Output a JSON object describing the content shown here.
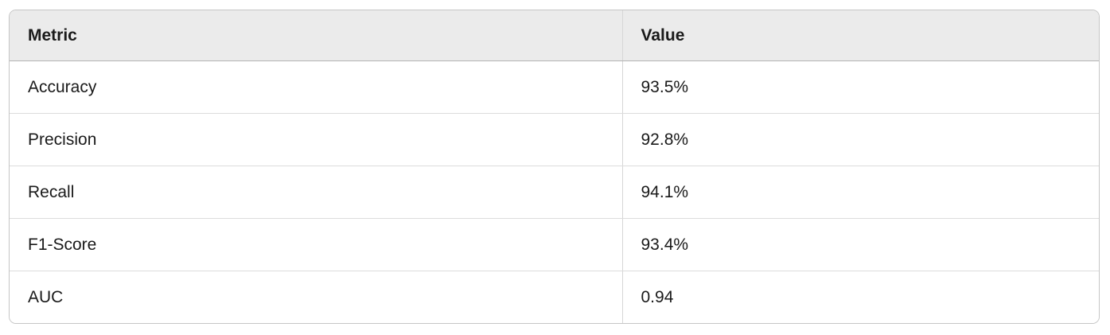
{
  "table": {
    "columns": [
      {
        "label": "Metric"
      },
      {
        "label": "Value"
      }
    ],
    "rows": [
      {
        "metric": "Accuracy",
        "value": "93.5%"
      },
      {
        "metric": "Precision",
        "value": "92.8%"
      },
      {
        "metric": "Recall",
        "value": "94.1%"
      },
      {
        "metric": "F1-Score",
        "value": "93.4%"
      },
      {
        "metric": "AUC",
        "value": "0.94"
      }
    ]
  }
}
